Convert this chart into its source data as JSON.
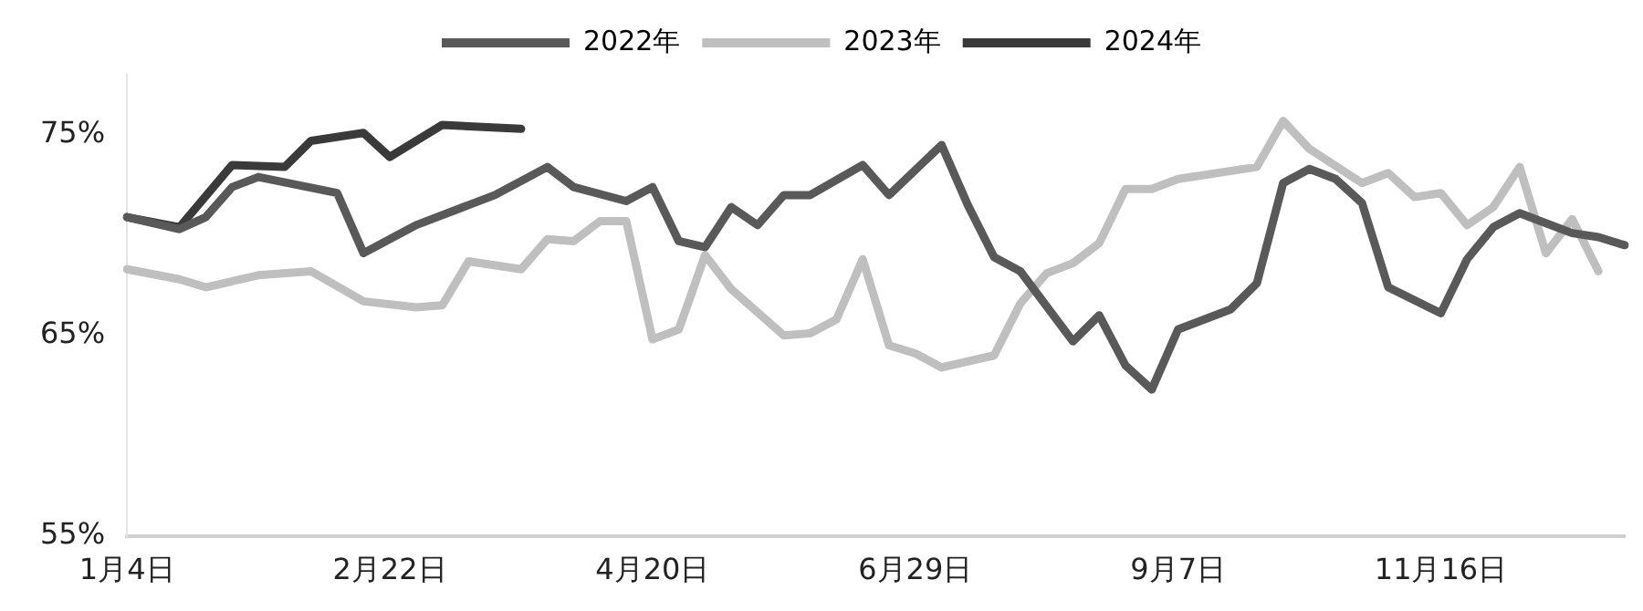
{
  "chart_data": {
    "type": "line",
    "categories": [
      "1月4日",
      null,
      null,
      null,
      null,
      null,
      null,
      null,
      null,
      null,
      "2月22日",
      null,
      null,
      null,
      null,
      null,
      null,
      null,
      null,
      null,
      "4月20日",
      null,
      null,
      null,
      null,
      null,
      null,
      null,
      null,
      null,
      "6月29日",
      null,
      null,
      null,
      null,
      null,
      null,
      null,
      null,
      null,
      "9月7日",
      null,
      null,
      null,
      null,
      null,
      null,
      null,
      null,
      null,
      "11月16日",
      null,
      null,
      null,
      null,
      null,
      null,
      null
    ],
    "series": [
      {
        "name": "2022年",
        "color": "#595959",
        "values": [
          70.9,
          null,
          70.3,
          70.9,
          72.4,
          72.9,
          null,
          null,
          72.1,
          69.1,
          null,
          70.5,
          null,
          71.5,
          72.0,
          null,
          73.4,
          72.4,
          null,
          71.7,
          72.4,
          69.7,
          69.4,
          71.4,
          70.5,
          72.0,
          72.0,
          null,
          73.5,
          72.0,
          null,
          74.5,
          71.5,
          68.9,
          68.2,
          null,
          64.7,
          66.0,
          63.5,
          62.3,
          65.3,
          null,
          66.3,
          67.6,
          72.6,
          73.3,
          72.8,
          71.6,
          67.4,
          null,
          66.1,
          68.8,
          70.4,
          71.1,
          null,
          70.1,
          69.9,
          69.5
        ]
      },
      {
        "name": "2023年",
        "color": "#bfbfbf",
        "values": [
          68.3,
          null,
          67.8,
          67.4,
          null,
          68.0,
          null,
          68.2,
          null,
          66.7,
          null,
          66.4,
          66.5,
          68.7,
          null,
          68.3,
          69.8,
          69.7,
          70.7,
          70.7,
          64.8,
          65.3,
          69.0,
          67.3,
          null,
          65.0,
          65.1,
          65.8,
          68.8,
          64.5,
          64.1,
          63.4,
          null,
          64.0,
          66.6,
          68.1,
          68.6,
          69.6,
          72.3,
          72.3,
          72.8,
          null,
          null,
          73.4,
          75.7,
          74.3,
          null,
          72.6,
          73.1,
          71.9,
          72.1,
          70.5,
          71.4,
          73.4,
          69.1,
          70.8,
          68.2,
          null
        ]
      },
      {
        "name": "2024年",
        "color": "#3a3a3a",
        "values": [
          70.9,
          null,
          70.4,
          null,
          73.5,
          null,
          73.4,
          74.7,
          null,
          75.1,
          73.9,
          null,
          75.5,
          null,
          null,
          75.3,
          null,
          null,
          null,
          null,
          null,
          null,
          null,
          null,
          null,
          null,
          null,
          null,
          null,
          null,
          null,
          null,
          null,
          null,
          null,
          null,
          null,
          null,
          null,
          null,
          null,
          null,
          null,
          null,
          null,
          null,
          null,
          null,
          null,
          null,
          null,
          null,
          null,
          null,
          null,
          null,
          null,
          null
        ]
      }
    ],
    "ylim": [
      55,
      78
    ],
    "yticks": [
      {
        "value": 55,
        "label": "55%"
      },
      {
        "value": 65,
        "label": "65%"
      },
      {
        "value": 75,
        "label": "75%"
      }
    ],
    "grid": false,
    "legend": "top",
    "marker": "none",
    "line_style": "solid"
  }
}
